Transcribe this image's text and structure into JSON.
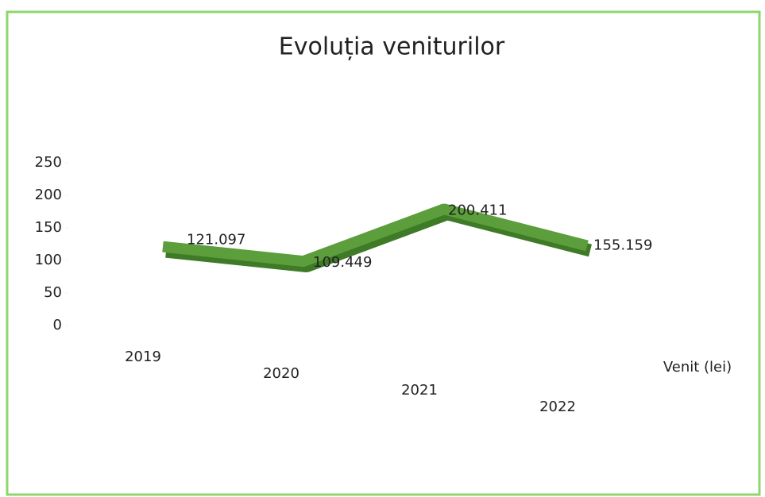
{
  "chart_data": {
    "type": "line",
    "title": "Evoluția veniturilor",
    "categories": [
      "2019",
      "2020",
      "2021",
      "2022"
    ],
    "series": [
      {
        "name": "Venit (lei)",
        "color": "#5c9e3c",
        "values": [
          121.097,
          109.449,
          200.411,
          155.159
        ]
      }
    ],
    "ylim": [
      0,
      250
    ],
    "yticks": [
      0,
      50,
      100,
      150,
      200,
      250
    ],
    "grid": false
  }
}
